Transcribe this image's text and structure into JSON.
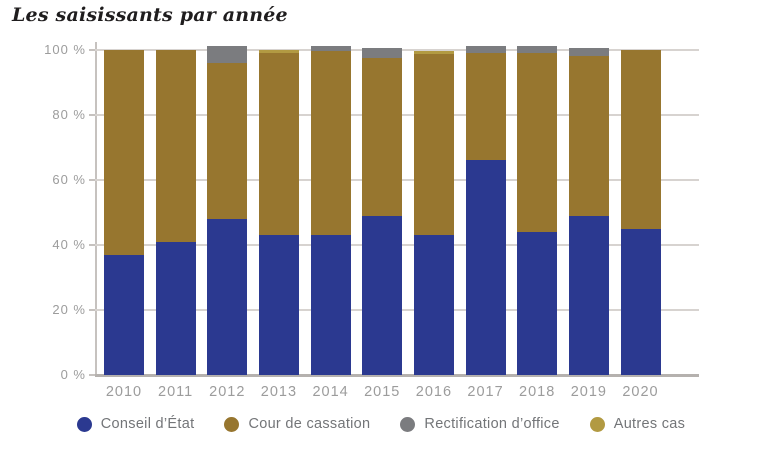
{
  "title": "Les saisissants par année",
  "chart_data": {
    "type": "bar",
    "stacked": true,
    "title": "Les saisissants par année",
    "xlabel": "",
    "ylabel": "",
    "ylim": [
      0,
      100
    ],
    "grid": true,
    "legend_position": "bottom",
    "unit": "%",
    "categories": [
      "2010",
      "2011",
      "2012",
      "2013",
      "2014",
      "2015",
      "2016",
      "2017",
      "2018",
      "2019",
      "2020"
    ],
    "series": [
      {
        "name": "Conseil d’État",
        "color": "#2b3990",
        "values": [
          37,
          41,
          48,
          43,
          43,
          49,
          43,
          66,
          44,
          49,
          45
        ]
      },
      {
        "name": "Cour de cassation",
        "color": "#97762f",
        "values": [
          63,
          59,
          48,
          56,
          56.5,
          48.5,
          55.5,
          33,
          55,
          49,
          55
        ]
      },
      {
        "name": "Rectification d’office",
        "color": "#7b7c7f",
        "values": [
          0,
          0,
          5,
          0,
          1.5,
          3,
          0,
          2,
          2,
          2.5,
          0
        ]
      },
      {
        "name": "Autres cas",
        "color": "#b29a42",
        "values": [
          0,
          0,
          0,
          1,
          0,
          0,
          1,
          0,
          0,
          0,
          0
        ]
      }
    ],
    "yticks": [
      {
        "value": 0,
        "label": "0 %"
      },
      {
        "value": 20,
        "label": "20 %"
      },
      {
        "value": 40,
        "label": "40 %"
      },
      {
        "value": 60,
        "label": "60 %"
      },
      {
        "value": 80,
        "label": "80 %"
      },
      {
        "value": 100,
        "label": "100 %"
      }
    ]
  }
}
